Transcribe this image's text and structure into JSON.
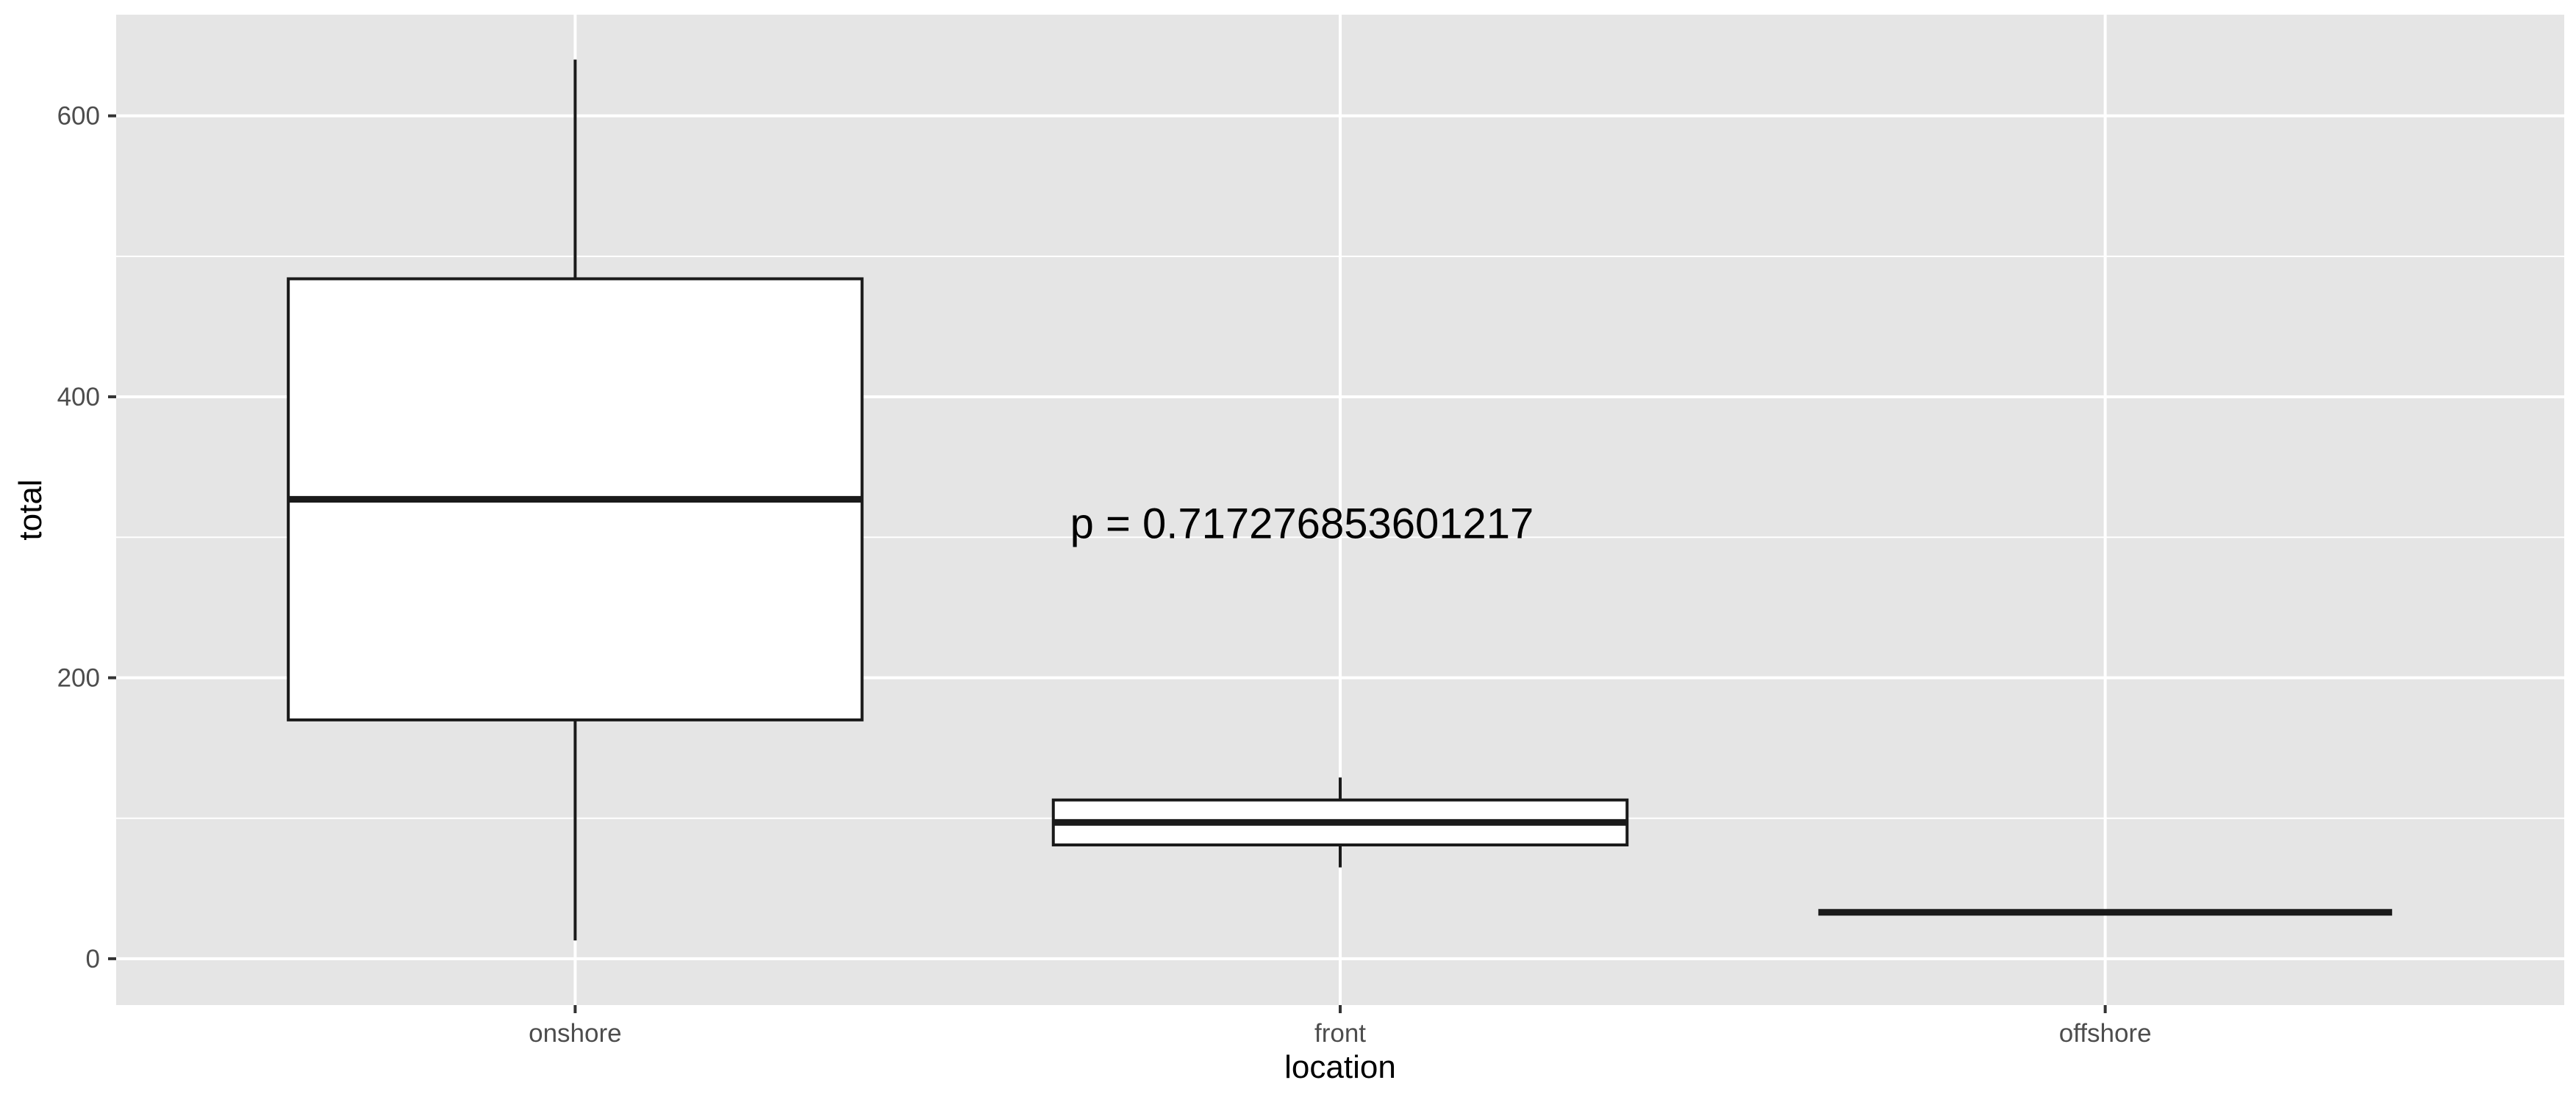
{
  "chart_data": {
    "type": "boxplot",
    "xlabel": "location",
    "ylabel": "total",
    "ylim": [
      -33,
      672
    ],
    "yticks": [
      0,
      200,
      400,
      600
    ],
    "ytick_labels": [
      "0",
      "200",
      "400",
      "600"
    ],
    "categories": [
      "onshore",
      "front",
      "offshore"
    ],
    "boxes": [
      {
        "category": "onshore",
        "whisker_low": 13,
        "q1": 170,
        "median": 327,
        "q3": 484,
        "whisker_high": 640
      },
      {
        "category": "front",
        "whisker_low": 65,
        "q1": 81,
        "median": 97,
        "q3": 113,
        "whisker_high": 129
      },
      {
        "category": "offshore",
        "whisker_low": 33,
        "q1": 33,
        "median": 33,
        "q3": 33,
        "whisker_high": 33
      }
    ],
    "annotation": {
      "text": "p = 0.717276853601217",
      "x_category_position": 1.95,
      "y": 297
    },
    "grid": true,
    "legend": "none",
    "colors": {
      "panel_background": "#e5e5e5",
      "grid": "#ffffff",
      "box_fill": "#ffffff",
      "box_line": "#1a1a1a",
      "axis_text": "#4d4d4d",
      "axis_title": "#000000"
    }
  }
}
